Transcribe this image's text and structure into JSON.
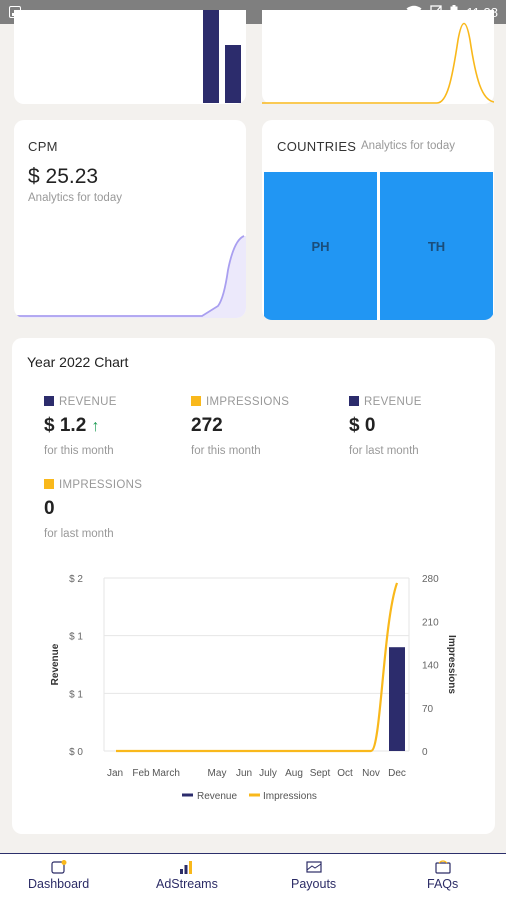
{
  "status_bar": {
    "time": "11:38"
  },
  "cpm_card": {
    "title": "CPM",
    "value": "$ 25.23",
    "subtitle": "Analytics for today"
  },
  "countries_card": {
    "title": "COUNTRIES",
    "subtitle": "Analytics for today",
    "cells": [
      {
        "label": "PH"
      },
      {
        "label": "TH"
      }
    ]
  },
  "year_chart_card": {
    "title": "Year 2022 Chart",
    "stats": [
      {
        "label": "REVENUE",
        "color": "#2c2c6c",
        "value": "$ 1.2",
        "trend": "↑",
        "sub": "for this month"
      },
      {
        "label": "IMPRESSIONS",
        "color": "#f9b81b",
        "value": "272",
        "sub": "for this month"
      },
      {
        "label": "REVENUE",
        "color": "#2c2c6c",
        "value": "$ 0",
        "sub": "for last month"
      },
      {
        "label": "IMPRESSIONS",
        "color": "#f9b81b",
        "value": "0",
        "sub": "for last month"
      }
    ]
  },
  "chart_data": [
    {
      "type": "bar",
      "title": "",
      "note": "partially visible top card",
      "series": [
        {
          "color": "#2c2c6c"
        }
      ]
    },
    {
      "type": "line",
      "title": "",
      "note": "partially visible top card",
      "series": [
        {
          "color": "#f9b81b"
        }
      ]
    },
    {
      "type": "area",
      "title": "",
      "note": "CPM sparkline",
      "series": [
        {
          "color": "#a99ff0"
        }
      ]
    },
    {
      "type": "bar",
      "title": "",
      "categories": [
        "Jan",
        "Feb",
        "March",
        "May",
        "Jun",
        "July",
        "Aug",
        "Sept",
        "Oct",
        "Nov",
        "Dec"
      ],
      "y_ticks_left": [
        "$ 0",
        "$ 1",
        "$ 1",
        "$ 2"
      ],
      "y_ticks_right": [
        "0",
        "70",
        "140",
        "210",
        "280"
      ],
      "ylabel": "Revenue",
      "ylabel_right": "Impressions",
      "ylim": [
        0,
        2
      ],
      "ylim_right": [
        0,
        280
      ],
      "series": [
        {
          "name": "Revenue",
          "type": "bar",
          "color": "#2c2c6c",
          "values": [
            0,
            0,
            0,
            0,
            0,
            0,
            0,
            0,
            0,
            0,
            1.2
          ]
        },
        {
          "name": "Impressions",
          "type": "line",
          "color": "#f9b81b",
          "values": [
            0,
            0,
            0,
            0,
            0,
            0,
            0,
            0,
            0,
            0,
            272
          ]
        }
      ],
      "legend": "bottom"
    }
  ],
  "nav": [
    {
      "label": "Dashboard",
      "icon": "dashboard-icon"
    },
    {
      "label": "AdStreams",
      "icon": "bar-chart-icon"
    },
    {
      "label": "Payouts",
      "icon": "payouts-icon"
    },
    {
      "label": "FAQs",
      "icon": "faq-icon"
    }
  ]
}
